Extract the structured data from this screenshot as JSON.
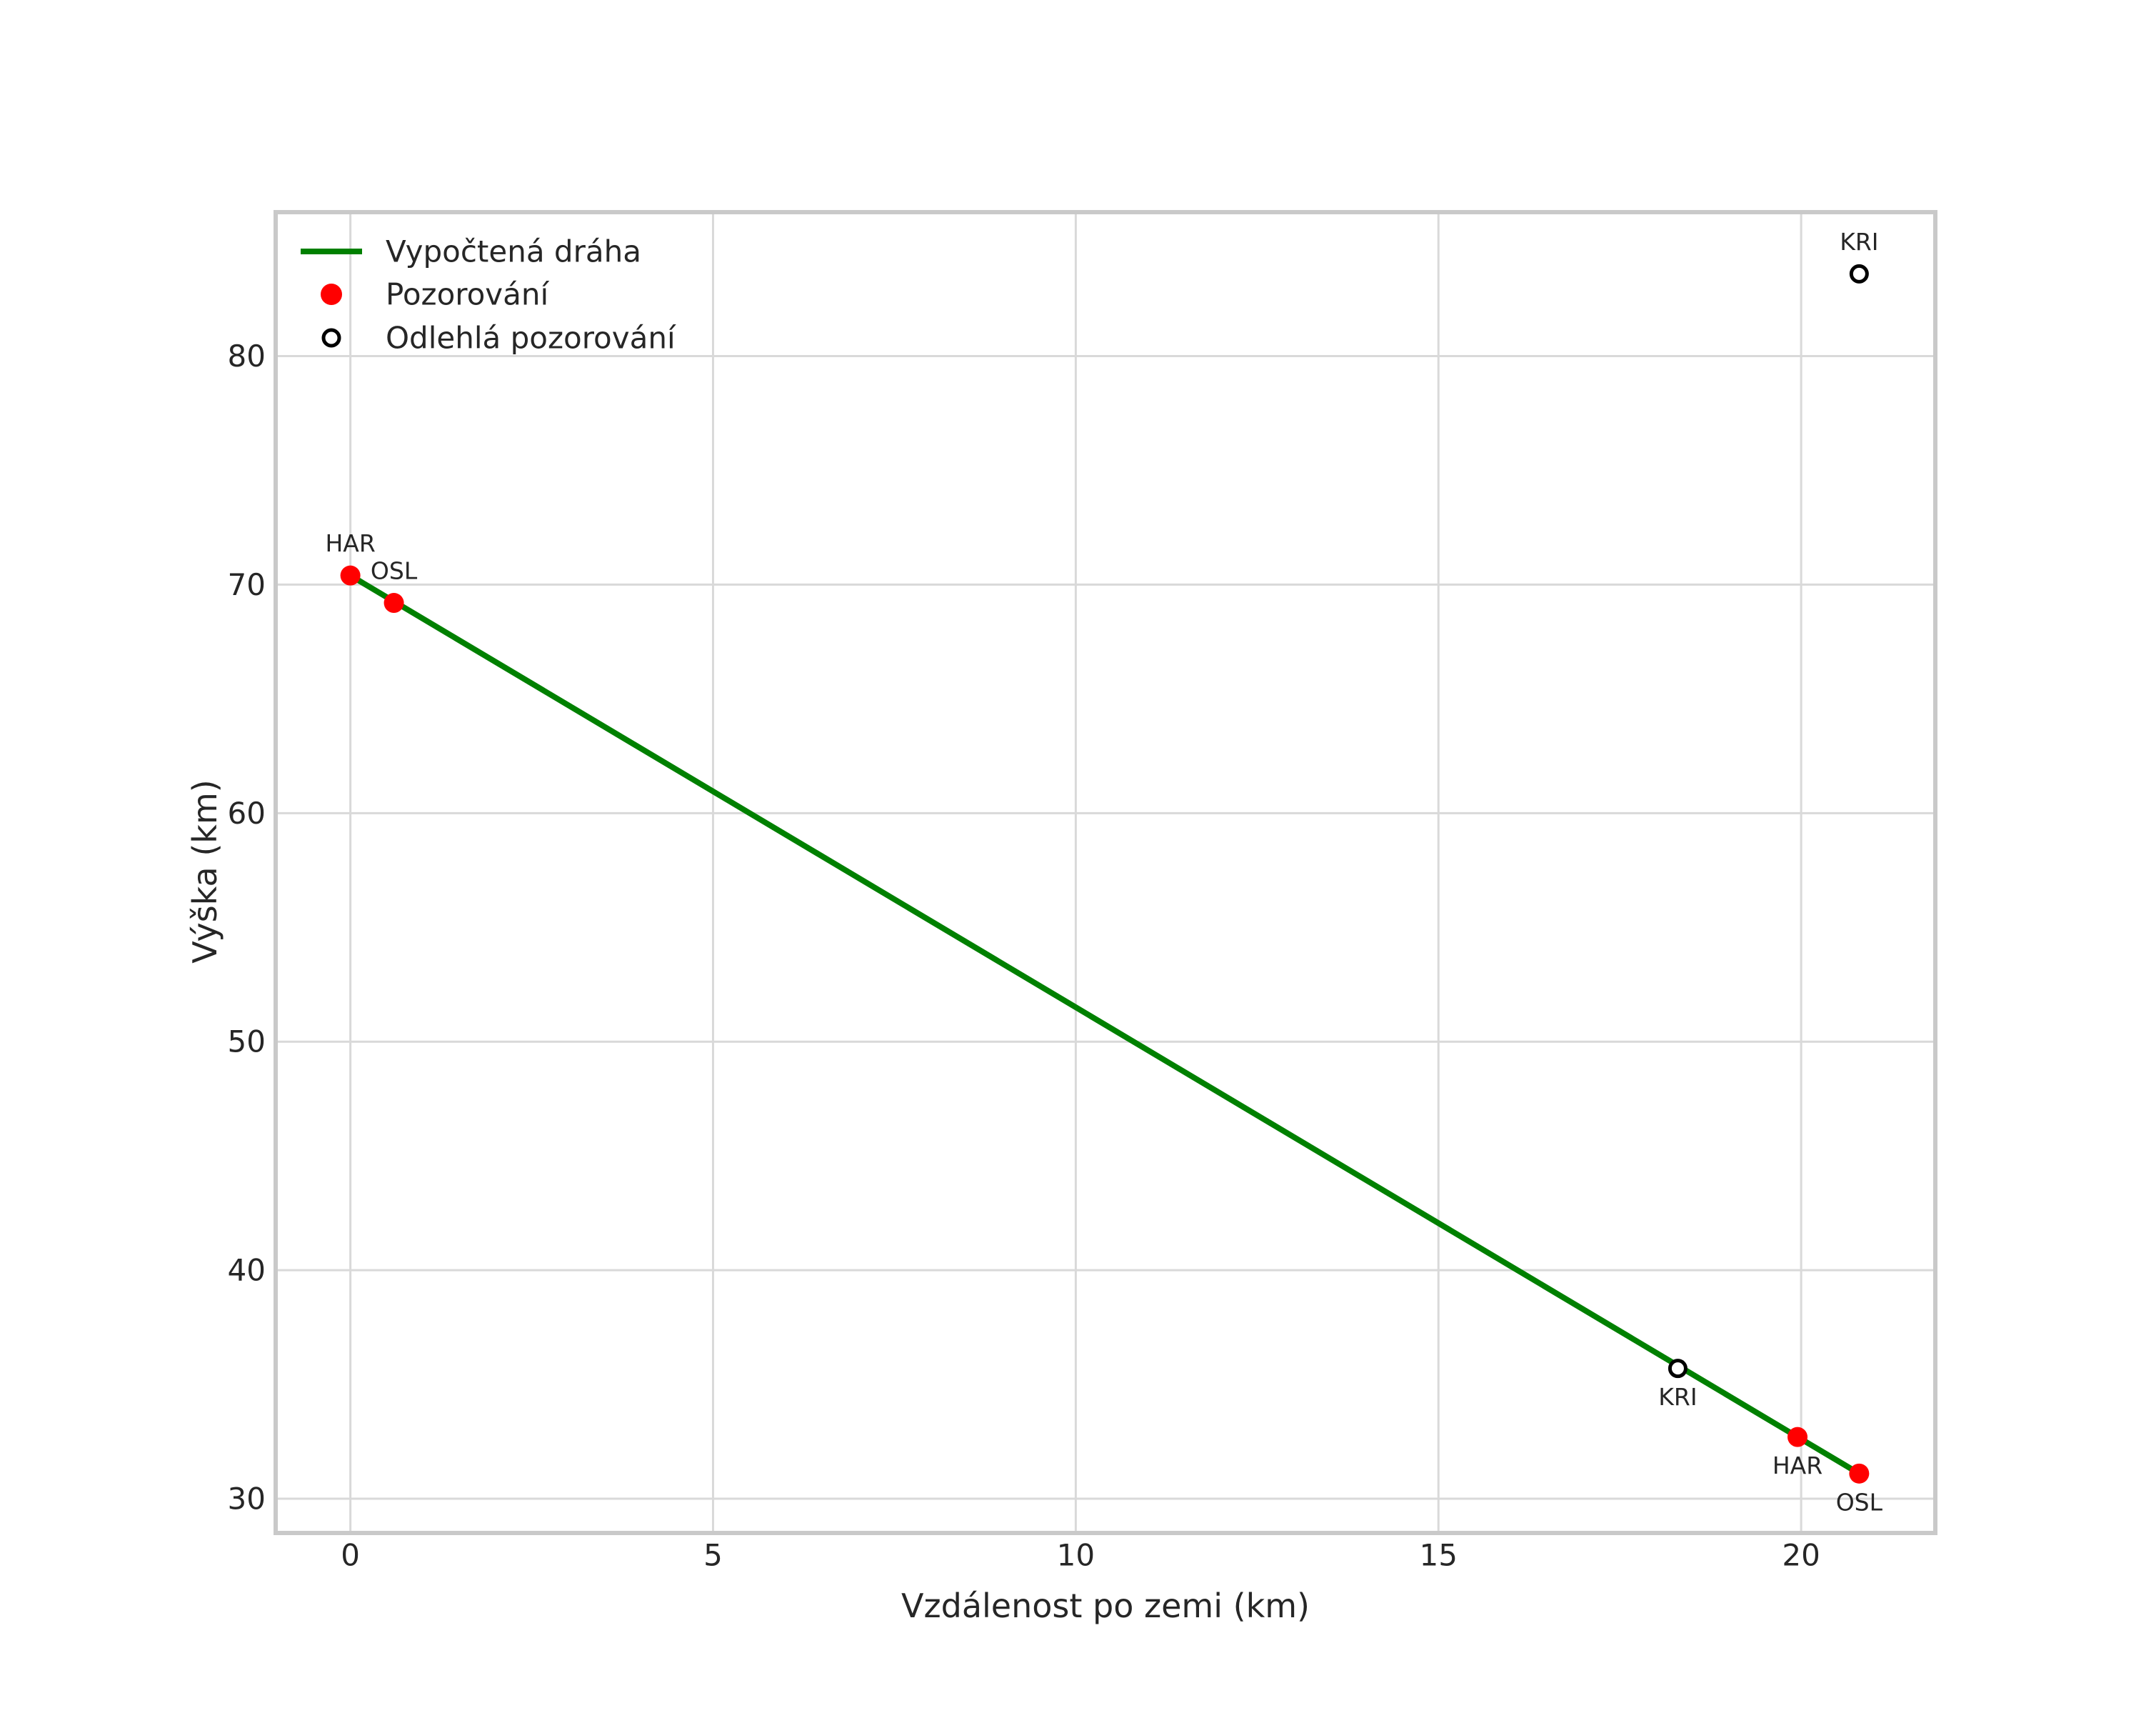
{
  "figure": {
    "background": "#ffffff"
  },
  "chart_data": {
    "type": "line",
    "title": "",
    "xlabel": "Vzdálenost po zemi (km)",
    "ylabel": "Výška (km)",
    "xlim": [
      -1.03,
      21.85
    ],
    "ylim": [
      28.5,
      86.3
    ],
    "x_ticks": [
      "0",
      "5",
      "10",
      "15",
      "20"
    ],
    "x_tick_values": [
      0,
      5,
      10,
      15,
      20
    ],
    "y_ticks": [
      "30",
      "40",
      "50",
      "60",
      "70",
      "80"
    ],
    "y_tick_values": [
      30,
      40,
      50,
      60,
      70,
      80
    ],
    "grid": true,
    "legend_position": "upper-left",
    "colors": {
      "trajectory": "#008000",
      "observation": "#ff0000",
      "outlier": "#000000",
      "grid": "#d9d9d9",
      "spine": "#c9c9c9",
      "text": "#262626"
    },
    "legend": [
      {
        "label": "Vypočtená dráha",
        "marker": "line"
      },
      {
        "label": "Pozorování",
        "marker": "filled-dot"
      },
      {
        "label": "Odlehlá pozorování",
        "marker": "open-circle"
      }
    ],
    "series": [
      {
        "name": "Vypočtená dráha",
        "type": "line",
        "points": [
          [
            0.0,
            70.4
          ],
          [
            20.8,
            31.1
          ]
        ]
      },
      {
        "name": "Pozorování",
        "type": "scatter",
        "points": [
          {
            "station": "HAR",
            "x": 0.0,
            "y": 70.4,
            "label_pos": "above"
          },
          {
            "station": "OSL",
            "x": 0.6,
            "y": 69.2,
            "label_pos": "above"
          },
          {
            "station": "HAR",
            "x": 19.95,
            "y": 32.7,
            "label_pos": "below"
          },
          {
            "station": "OSL",
            "x": 20.8,
            "y": 31.1,
            "label_pos": "below"
          }
        ]
      },
      {
        "name": "Odlehlá pozorování",
        "type": "scatter-open",
        "points": [
          {
            "station": "KRI",
            "x": 20.8,
            "y": 83.6,
            "label_pos": "above"
          },
          {
            "station": "KRI",
            "x": 18.3,
            "y": 35.7,
            "label_pos": "below"
          }
        ]
      }
    ]
  }
}
